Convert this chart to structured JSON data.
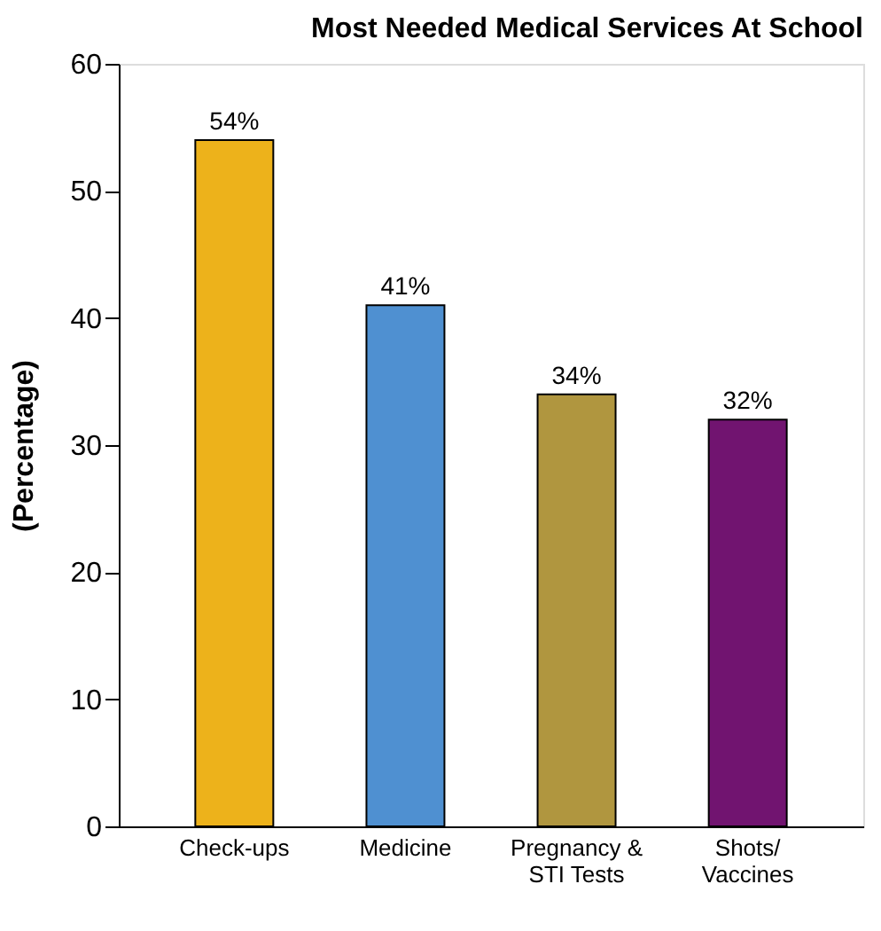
{
  "chart_data": {
    "type": "bar",
    "title": "Most Needed Medical Services At School",
    "ylabel": "(Percentage)",
    "categories": [
      "Check-ups",
      "Medicine",
      "Pregnancy &\nSTI Tests",
      "Shots/\nVaccines"
    ],
    "values": [
      54,
      41,
      34,
      32
    ],
    "colors": [
      "#edb21b",
      "#4f90d1",
      "#b0963f",
      "#711470"
    ],
    "value_labels": [
      "54%",
      "41%",
      "34%",
      "32%"
    ],
    "ylim": [
      0,
      60
    ],
    "yticks": [
      0,
      10,
      20,
      30,
      40,
      50,
      60
    ],
    "grid": false,
    "legend": false
  }
}
